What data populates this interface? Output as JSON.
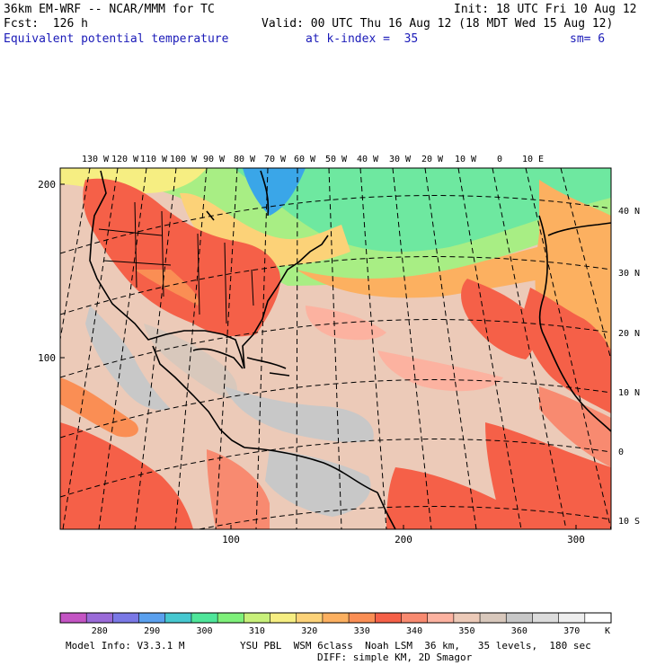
{
  "header": {
    "model": "36km EM-WRF -- NCAR/MMM for TC",
    "init": "Init: 18 UTC Fri 10 Aug 12",
    "fcst": "Fcst:  126 h",
    "valid": "Valid: 00 UTC Thu 16 Aug 12 (18 MDT Wed 15 Aug 12)",
    "field": "Equivalent potential temperature",
    "level": "at k-index =  35",
    "smoothing": "sm= 6"
  },
  "map": {
    "lon_labels": [
      "130 W",
      "120 W",
      "110 W",
      "100 W",
      "90 W",
      "80 W",
      "70 W",
      "60 W",
      "50 W",
      "40 W",
      "30 W",
      "20 W",
      "10 W",
      "0",
      "10 E"
    ],
    "lat_labels": [
      "40 N",
      "30 N",
      "20 N",
      "10 N",
      "0",
      "10 S"
    ],
    "grid_y_labels": [
      "200",
      "100"
    ],
    "grid_x_labels": [
      "100",
      "200",
      "300"
    ]
  },
  "colorbar": {
    "labels": [
      "280",
      "290",
      "300",
      "310",
      "320",
      "330",
      "340",
      "350",
      "360",
      "370"
    ],
    "units": "K",
    "colors": [
      "#c454c4",
      "#9a6ad8",
      "#7a78e6",
      "#5aa0ee",
      "#46c8d0",
      "#4ee69a",
      "#7ef07a",
      "#c8f07a",
      "#f6ee82",
      "#fcd278",
      "#fcb060",
      "#fa8e54",
      "#f56048",
      "#f88a70",
      "#fcb2a0",
      "#eccab8",
      "#d8c8bc",
      "#c8c8c8",
      "#dcdcdc",
      "#eeeeee",
      "#ffffff"
    ]
  },
  "footer": {
    "model_info": "Model Info: V3.3.1 M",
    "physics": "YSU PBL  WSM 6class  Noah LSM  36 km,   35 levels,  180 sec",
    "diffusion": "DIFF: simple KM, 2D Smagor"
  }
}
